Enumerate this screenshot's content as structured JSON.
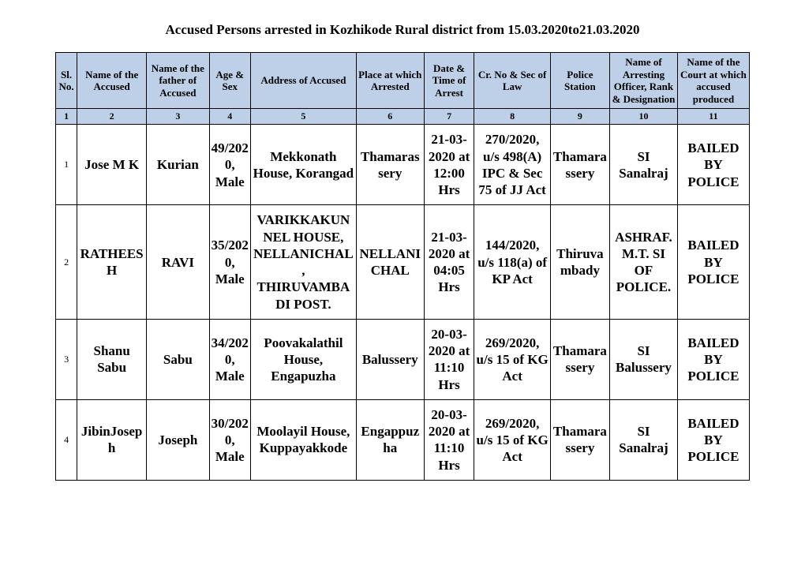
{
  "title": "Accused Persons arrested in   Kozhikode Rural   district from   15.03.2020to21.03.2020",
  "headers": {
    "c1": "Sl. No.",
    "c2": "Name of the Accused",
    "c3": "Name of the father of Accused",
    "c4": "Age & Sex",
    "c5": "Address of Accused",
    "c6": "Place at which Arrested",
    "c7": "Date & Time of Arrest",
    "c8": "Cr. No & Sec of Law",
    "c9": "Police Station",
    "c10": "Name of Arresting Officer, Rank & Designation",
    "c11": "Name of the Court at which accused produced"
  },
  "colnums": {
    "c1": "1",
    "c2": "2",
    "c3": "3",
    "c4": "4",
    "c5": "5",
    "c6": "6",
    "c7": "7",
    "c8": "8",
    "c9": "9",
    "c10": "10",
    "c11": "11"
  },
  "rows": [
    {
      "sl": "1",
      "name": "Jose M K",
      "father": "Kurian",
      "age": "49/2020, Male",
      "address": "Mekkonath House, Korangad",
      "place": "Thamarassery",
      "datetime": "21-03-2020 at 12:00 Hrs",
      "crno": "270/2020, u/s 498(A) IPC & Sec 75 of JJ Act",
      "station": "Thamarassery",
      "officer": "SI Sanalraj",
      "court": "BAILED BY POLICE"
    },
    {
      "sl": "2",
      "name": "RATHEESH",
      "father": "RAVI",
      "age": "35/2020, Male",
      "address": "VARIKKAKUNNEL HOUSE, NELLANICHAL, THIRUVAMBADI POST.",
      "place": "NELLANICHAL",
      "datetime": "21-03-2020 at 04:05 Hrs",
      "crno": "144/2020, u/s 118(a) of KP Act",
      "station": "Thiruvambady",
      "officer": "ASHRAF. M.T. SI OF POLICE.",
      "court": "BAILED BY POLICE"
    },
    {
      "sl": "3",
      "name": "Shanu Sabu",
      "father": "Sabu",
      "age": "34/2020, Male",
      "address": "Poovakalathil House, Engapuzha",
      "place": "Balussery",
      "datetime": "20-03-2020 at 11:10 Hrs",
      "crno": "269/2020, u/s 15 of KG Act",
      "station": "Thamarassery",
      "officer": "SI Balussery",
      "court": "BAILED BY POLICE"
    },
    {
      "sl": "4",
      "name": "JibinJoseph",
      "father": "Joseph",
      "age": "30/2020, Male",
      "address": "Moolayil House, Kuppayakkode",
      "place": "Engappuzha",
      "datetime": "20-03-2020 at 11:10 Hrs",
      "crno": "269/2020, u/s 15 of KG Act",
      "station": "Thamarassery",
      "officer": "SI Sanalraj",
      "court": "BAILED BY POLICE"
    }
  ]
}
